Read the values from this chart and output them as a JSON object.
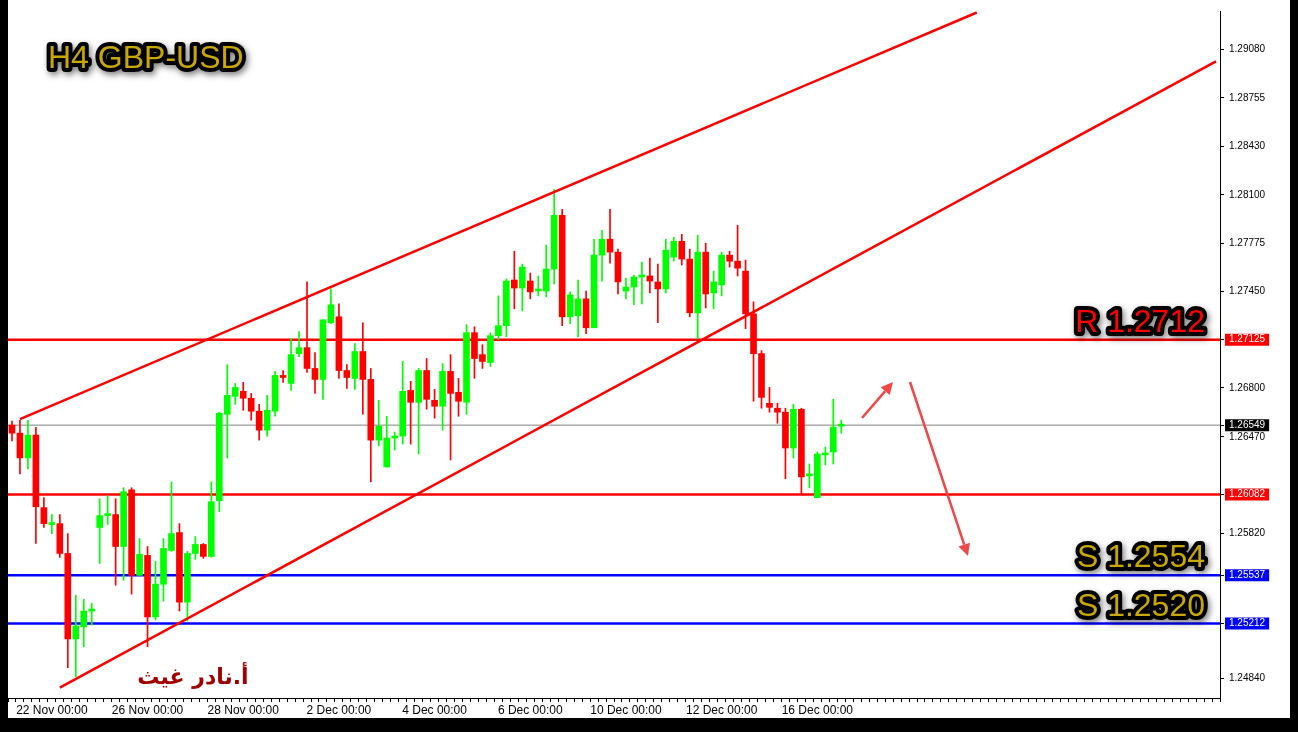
{
  "chart_data": {
    "type": "candlestick",
    "title": "H4 GBP-USD",
    "annotations": [
      "أ.نادر غيث"
    ],
    "categories": [
      null,
      null,
      null,
      null,
      null,
      "22 Nov 00:00",
      null,
      null,
      null,
      null,
      null,
      null,
      null,
      null,
      null,
      null,
      null,
      "26 Nov 00:00",
      null,
      null,
      null,
      null,
      null,
      null,
      null,
      null,
      null,
      null,
      null,
      "28 Nov 00:00",
      null,
      null,
      null,
      null,
      null,
      null,
      null,
      null,
      null,
      null,
      null,
      "2 Dec 00:00",
      null,
      null,
      null,
      null,
      null,
      null,
      null,
      null,
      null,
      null,
      null,
      "4 Dec 00:00",
      null,
      null,
      null,
      null,
      null,
      null,
      null,
      null,
      null,
      null,
      null,
      "6 Dec 00:00",
      null,
      null,
      null,
      null,
      null,
      null,
      null,
      null,
      null,
      null,
      null,
      "10 Dec 00:00",
      null,
      null,
      null,
      null,
      null,
      null,
      null,
      null,
      null,
      null,
      null,
      "12 Dec 00:00",
      null,
      null,
      null,
      null,
      null,
      null,
      null,
      null,
      null,
      null,
      null,
      "16 Dec 00:00",
      null,
      null,
      null,
      null,
      null,
      null,
      null,
      null,
      null,
      null,
      null,
      null,
      null,
      null,
      null,
      null,
      null,
      null,
      null,
      null,
      null,
      null,
      null,
      null,
      null,
      null,
      null,
      null,
      null,
      null,
      null,
      null,
      null,
      null,
      null,
      null,
      null,
      null,
      null,
      null,
      null,
      null,
      null,
      null,
      null,
      null,
      null,
      null,
      null,
      null
    ],
    "ohlc": [
      [
        1.26549,
        1.26576,
        1.26442,
        1.26495
      ],
      [
        1.26495,
        1.26582,
        1.2622,
        1.26328
      ],
      [
        1.26328,
        1.26582,
        1.26254,
        1.26482
      ],
      [
        1.26482,
        1.26535,
        1.25751,
        1.25999
      ],
      [
        1.25993,
        1.2606,
        1.25859,
        1.25885
      ],
      [
        1.25879,
        1.25946,
        1.25818,
        1.25885
      ],
      [
        1.25885,
        1.25946,
        1.25658,
        1.25684
      ],
      [
        1.25684,
        1.25818,
        1.24914,
        1.25108
      ],
      [
        1.25108,
        1.25403,
        1.24854,
        1.25195
      ],
      [
        1.25189,
        1.25376,
        1.25055,
        1.25296
      ],
      [
        1.25296,
        1.25349,
        1.25202,
        1.25302
      ],
      [
        1.25859,
        1.26053,
        1.25617,
        1.25939
      ],
      [
        1.25939,
        1.26073,
        1.25879,
        1.25946
      ],
      [
        1.25946,
        1.26053,
        1.2547,
        1.25731
      ],
      [
        1.25731,
        1.26127,
        1.25504,
        1.261
      ],
      [
        1.26113,
        1.26127,
        1.2541,
        1.25537
      ],
      [
        1.25537,
        1.25785,
        1.25537,
        1.25678
      ],
      [
        1.25671,
        1.25731,
        1.25055,
        1.25256
      ],
      [
        1.25256,
        1.25631,
        1.25236,
        1.25477
      ],
      [
        1.25477,
        1.25785,
        1.25363,
        1.25718
      ],
      [
        1.25705,
        1.26167,
        1.25698,
        1.25818
      ],
      [
        1.25825,
        1.25885,
        1.25296,
        1.25356
      ],
      [
        1.25356,
        1.25698,
        1.25229,
        1.25684
      ],
      [
        1.25684,
        1.25798,
        1.25644,
        1.25745
      ],
      [
        1.25745,
        1.25751,
        1.25651,
        1.25664
      ],
      [
        1.25664,
        1.26167,
        1.25658,
        1.26033
      ],
      [
        1.2604,
        1.26636,
        1.25966,
        1.26629
      ],
      [
        1.26622,
        1.26957,
        1.26328,
        1.2675
      ],
      [
        1.26743,
        1.2683,
        1.26689,
        1.26803
      ],
      [
        1.26777,
        1.26837,
        1.26649,
        1.2673
      ],
      [
        1.2673,
        1.26763,
        1.26582,
        1.26643
      ],
      [
        1.26643,
        1.26689,
        1.26448,
        1.26515
      ],
      [
        1.26515,
        1.2675,
        1.26475,
        1.26649
      ],
      [
        1.26643,
        1.26911,
        1.26609,
        1.26884
      ],
      [
        1.26884,
        1.26917,
        1.26837,
        1.2687
      ],
      [
        1.2683,
        1.27132,
        1.26783,
        1.27024
      ],
      [
        1.27031,
        1.27179,
        1.27011,
        1.27071
      ],
      [
        1.27071,
        1.27514,
        1.26904,
        1.26931
      ],
      [
        1.26931,
        1.27038,
        1.26763,
        1.26857
      ],
      [
        1.26857,
        1.27259,
        1.26723,
        1.27259
      ],
      [
        1.27239,
        1.27467,
        1.27232,
        1.2736
      ],
      [
        1.27279,
        1.27366,
        1.26864,
        1.26917
      ],
      [
        1.26917,
        1.26957,
        1.26797,
        1.2687
      ],
      [
        1.26864,
        1.27098,
        1.2679,
        1.27045
      ],
      [
        1.27045,
        1.27239,
        1.26622,
        1.26857
      ],
      [
        1.26857,
        1.26931,
        1.26167,
        1.26448
      ],
      [
        1.26448,
        1.26716,
        1.26408,
        1.26542
      ],
      [
        1.26267,
        1.26609,
        1.26267,
        1.26462
      ],
      [
        1.26462,
        1.26502,
        1.26381,
        1.26475
      ],
      [
        1.26475,
        1.26978,
        1.26421,
        1.26777
      ],
      [
        1.26783,
        1.26844,
        1.26421,
        1.26703
      ],
      [
        1.26703,
        1.26931,
        1.26354,
        1.26917
      ],
      [
        1.26917,
        1.26998,
        1.26656,
        1.26723
      ],
      [
        1.26716,
        1.2679,
        1.26596,
        1.26676
      ],
      [
        1.26676,
        1.26964,
        1.26515,
        1.26911
      ],
      [
        1.26911,
        1.27024,
        1.26314,
        1.26763
      ],
      [
        1.2677,
        1.26864,
        1.26609,
        1.2671
      ],
      [
        1.26703,
        1.27226,
        1.26622,
        1.27172
      ],
      [
        1.27172,
        1.27212,
        1.26864,
        1.26998
      ],
      [
        1.27024,
        1.27091,
        1.26931,
        1.26978
      ],
      [
        1.26971,
        1.27172,
        1.26944,
        1.27152
      ],
      [
        1.27152,
        1.2742,
        1.27125,
        1.27219
      ],
      [
        1.27219,
        1.27534,
        1.27145,
        1.2752
      ],
      [
        1.27527,
        1.27721,
        1.27333,
        1.27473
      ],
      [
        1.27473,
        1.27634,
        1.27319,
        1.27614
      ],
      [
        1.2752,
        1.27574,
        1.274,
        1.27447
      ],
      [
        1.27453,
        1.27554,
        1.2742,
        1.2746
      ],
      [
        1.27453,
        1.27762,
        1.27413,
        1.27601
      ],
      [
        1.27601,
        1.28137,
        1.275,
        1.27963
      ],
      [
        1.27963,
        1.28003,
        1.27219,
        1.27279
      ],
      [
        1.27279,
        1.27447,
        1.27232,
        1.27427
      ],
      [
        1.27286,
        1.27527,
        1.27145,
        1.274
      ],
      [
        1.274,
        1.27453,
        1.27165,
        1.27205
      ],
      [
        1.27205,
        1.27802,
        1.27205,
        1.27695
      ],
      [
        1.27695,
        1.27862,
        1.2752,
        1.27802
      ],
      [
        1.27802,
        1.28003,
        1.27641,
        1.27715
      ],
      [
        1.27715,
        1.27735,
        1.27433,
        1.27514
      ],
      [
        1.27453,
        1.2754,
        1.274,
        1.2748
      ],
      [
        1.2748,
        1.27561,
        1.2736,
        1.27547
      ],
      [
        1.27547,
        1.27648,
        1.27366,
        1.27561
      ],
      [
        1.27554,
        1.27674,
        1.2744,
        1.2752
      ],
      [
        1.27514,
        1.27634,
        1.27239,
        1.27467
      ],
      [
        1.27467,
        1.27802,
        1.2744,
        1.27728
      ],
      [
        1.27681,
        1.27815,
        1.27654,
        1.27788
      ],
      [
        1.27788,
        1.27835,
        1.27628,
        1.27668
      ],
      [
        1.27668,
        1.27735,
        1.27279,
        1.27306
      ],
      [
        1.27306,
        1.27829,
        1.27132,
        1.27715
      ],
      [
        1.27715,
        1.27775,
        1.27339,
        1.27433
      ],
      [
        1.2744,
        1.27587,
        1.27333,
        1.27514
      ],
      [
        1.27494,
        1.27715,
        1.2742,
        1.27695
      ],
      [
        1.27695,
        1.27721,
        1.27614,
        1.27654
      ],
      [
        1.27654,
        1.27896,
        1.27554,
        1.27607
      ],
      [
        1.27587,
        1.27661,
        1.27199,
        1.27299
      ],
      [
        1.27299,
        1.2738,
        1.2671,
        1.27031
      ],
      [
        1.27031,
        1.27051,
        1.26663,
        1.26736
      ],
      [
        1.26696,
        1.26803,
        1.26636,
        1.26669
      ],
      [
        1.26663,
        1.26696,
        1.26562,
        1.26636
      ],
      [
        1.26636,
        1.26663,
        1.26187,
        1.26395
      ],
      [
        1.26395,
        1.26689,
        1.26328,
        1.26656
      ],
      [
        1.26656,
        1.26663,
        1.2608,
        1.262
      ],
      [
        1.26207,
        1.26287,
        1.26127,
        1.2622
      ],
      [
        1.2606,
        1.26368,
        1.2606,
        1.26354
      ],
      [
        1.26348,
        1.26401,
        1.26281,
        1.26361
      ],
      [
        1.26368,
        1.26723,
        1.26287,
        1.26535
      ],
      [
        1.26542,
        1.26582,
        1.26495,
        1.26549
      ],
      null,
      null,
      null,
      null,
      null,
      null,
      null,
      null,
      null,
      null,
      null,
      null,
      null,
      null,
      null,
      null,
      null,
      null,
      null,
      null,
      null,
      null,
      null,
      null,
      null,
      null,
      null,
      null,
      null,
      null,
      null,
      null,
      null,
      null,
      null,
      null,
      null,
      null,
      null,
      null,
      null,
      null,
      null,
      null,
      null,
      null,
      null
    ],
    "colors": [
      "#ff0000",
      "#ff0000",
      "#00ff00",
      "#ff0000",
      "#ff0000",
      "#00ff00",
      "#ff0000",
      "#ff0000",
      "#00ff00",
      "#00ff00",
      "#00ff00",
      "#00ff00",
      "#00ff00",
      "#ff0000",
      "#00ff00",
      "#ff0000",
      "#00ff00",
      "#ff0000",
      "#00ff00",
      "#00ff00",
      "#00ff00",
      "#ff0000",
      "#00ff00",
      "#00ff00",
      "#ff0000",
      "#00ff00",
      "#00ff00",
      "#00ff00",
      "#00ff00",
      "#ff0000",
      "#ff0000",
      "#ff0000",
      "#00ff00",
      "#00ff00",
      "#ff0000",
      "#00ff00",
      "#00ff00",
      "#ff0000",
      "#ff0000",
      "#00ff00",
      "#00ff00",
      "#ff0000",
      "#ff0000",
      "#00ff00",
      "#ff0000",
      "#ff0000",
      "#00ff00",
      "#00ff00",
      "#00ff00",
      "#00ff00",
      "#ff0000",
      "#00ff00",
      "#ff0000",
      "#ff0000",
      "#00ff00",
      "#ff0000",
      "#ff0000",
      "#00ff00",
      "#ff0000",
      "#ff0000",
      "#00ff00",
      "#00ff00",
      "#00ff00",
      "#ff0000",
      "#00ff00",
      "#ff0000",
      "#00ff00",
      "#00ff00",
      "#00ff00",
      "#ff0000",
      "#00ff00",
      "#00ff00",
      "#ff0000",
      "#00ff00",
      "#00ff00",
      "#ff0000",
      "#ff0000",
      "#00ff00",
      "#00ff00",
      "#00ff00",
      "#ff0000",
      "#ff0000",
      "#00ff00",
      "#00ff00",
      "#ff0000",
      "#ff0000",
      "#00ff00",
      "#ff0000",
      "#00ff00",
      "#00ff00",
      "#ff0000",
      "#ff0000",
      "#ff0000",
      "#ff0000",
      "#ff0000",
      "#ff0000",
      "#ff0000",
      "#ff0000",
      "#00ff00",
      "#ff0000",
      "#00ff00",
      "#00ff00",
      "#00ff00",
      "#00ff00",
      "#00ff00",
      null,
      null,
      null,
      null,
      null,
      null,
      null,
      null,
      null,
      null,
      null,
      null,
      null,
      null,
      null,
      null,
      null,
      null,
      null,
      null,
      null,
      null,
      null,
      null,
      null,
      null,
      null,
      null,
      null,
      null,
      null,
      null,
      null,
      null,
      null,
      null,
      null,
      null,
      null,
      null,
      null,
      null,
      null,
      null,
      null,
      null,
      null
    ],
    "series": [
      {
        "type": "line",
        "color": "#ff0000",
        "values": [
          null,
          1.2659,
          null,
          null,
          null,
          null,
          null,
          null,
          null,
          null,
          null,
          null,
          null,
          null,
          null,
          null,
          null,
          null,
          null,
          null,
          null,
          null,
          null,
          null,
          null,
          null,
          null,
          null,
          null,
          null,
          null,
          null,
          null,
          null,
          null,
          null,
          null,
          null,
          null,
          null,
          null,
          null,
          null,
          null,
          null,
          null,
          null,
          null,
          null,
          null,
          null,
          null,
          null,
          null,
          null,
          null,
          null,
          null,
          null,
          null,
          null,
          null,
          null,
          null,
          null,
          null,
          null,
          null,
          null,
          null,
          null,
          null,
          null,
          null,
          null,
          null,
          null,
          null,
          null,
          null,
          null,
          null,
          null,
          null,
          null,
          null,
          null,
          null,
          null,
          null,
          null,
          null,
          null,
          null,
          null,
          null,
          null,
          null,
          null,
          null,
          null,
          null,
          null,
          null,
          null,
          null,
          null,
          null,
          null,
          null,
          null,
          null,
          null,
          null,
          null,
          null,
          null,
          null,
          null,
          null,
          null,
          1.2933,
          null,
          null,
          null,
          null,
          null,
          null,
          null,
          null,
          null,
          null,
          null,
          null,
          null,
          null,
          null,
          null,
          null,
          null,
          null,
          null,
          null,
          null,
          null,
          null,
          null,
          null,
          null,
          null,
          null,
          null
        ]
      },
      {
        "type": "line",
        "color": "#ff0000",
        "values": [
          null,
          null,
          null,
          null,
          null,
          null,
          1.2478,
          null,
          null,
          null,
          null,
          null,
          null,
          null,
          null,
          null,
          null,
          null,
          null,
          null,
          null,
          null,
          null,
          null,
          null,
          null,
          null,
          null,
          null,
          null,
          null,
          null,
          null,
          null,
          null,
          null,
          null,
          null,
          null,
          null,
          null,
          null,
          null,
          null,
          null,
          null,
          null,
          null,
          null,
          null,
          null,
          null,
          null,
          null,
          null,
          null,
          null,
          null,
          null,
          null,
          null,
          null,
          null,
          null,
          null,
          null,
          null,
          null,
          null,
          null,
          null,
          null,
          null,
          null,
          null,
          null,
          null,
          null,
          null,
          null,
          null,
          null,
          null,
          null,
          null,
          null,
          null,
          null,
          null,
          null,
          null,
          null,
          null,
          null,
          null,
          null,
          null,
          null,
          null,
          null,
          null,
          null,
          null,
          null,
          null,
          null,
          null,
          null,
          null,
          null,
          null,
          null,
          null,
          null,
          null,
          null,
          null,
          null,
          null,
          null,
          null,
          null,
          null,
          null,
          null,
          null,
          null,
          null,
          null,
          null,
          null,
          null,
          null,
          null,
          null,
          null,
          null,
          null,
          null,
          null,
          null,
          null,
          null,
          null,
          null,
          null,
          null,
          null,
          null,
          null,
          null,
          1.29
        ]
      }
    ],
    "ref_lines": [
      {
        "axis": "y",
        "value": 1.27125,
        "label": "R 1.2712",
        "color": "#ff0000"
      },
      {
        "axis": "y",
        "value": 1.26082,
        "color": "#ff0000"
      },
      {
        "axis": "y",
        "value": 1.25537,
        "label": "S 1.2554",
        "color": "#0000ff"
      },
      {
        "axis": "y",
        "value": 1.25212,
        "label": "S 1.2520",
        "color": "#0000ff"
      },
      {
        "axis": "y",
        "value": 1.26549,
        "color": "#808080"
      }
    ],
    "ylim": [
      1.2471,
      1.2934
    ],
    "yticks": [
      {
        "value": 1.2908,
        "label": "1.29080"
      },
      1.28755,
      {
        "value": 1.2843,
        "label": "1.28430"
      },
      {
        "value": 1.281,
        "label": "1.28100"
      },
      1.27775,
      {
        "value": 1.2745,
        "label": "1.27450"
      },
      1.27125,
      {
        "value": 1.268,
        "label": "1.26800"
      },
      1.26549,
      {
        "value": 1.2647,
        "label": "1.26470"
      },
      1.26082,
      {
        "value": 1.2582,
        "label": "1.25820"
      },
      1.25537,
      1.25212,
      {
        "value": 1.2484,
        "label": "1.24840"
      }
    ],
    "legend": false
  }
}
